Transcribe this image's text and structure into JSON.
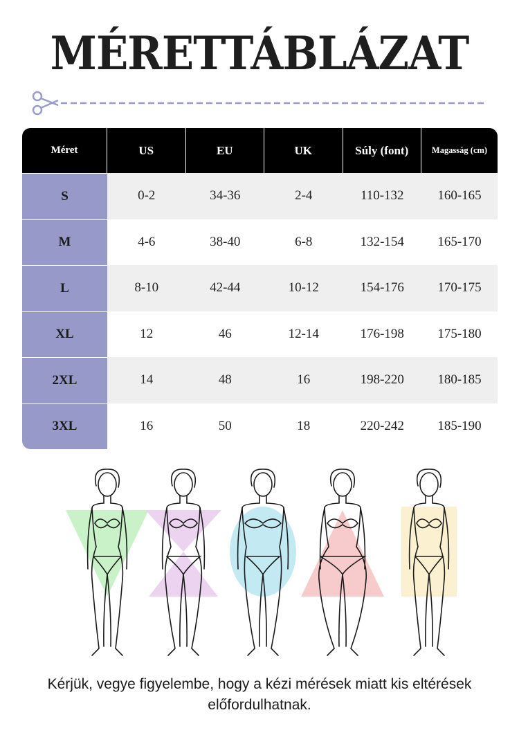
{
  "title": "MÉRETTÁBLÁZAT",
  "table": {
    "headers": [
      "Méret",
      "US",
      "EU",
      "UK",
      "Súly (font)",
      "Magasság (cm)"
    ],
    "rows": [
      [
        "S",
        "0-2",
        "34-36",
        "2-4",
        "110-132",
        "160-165"
      ],
      [
        "M",
        "4-6",
        "38-40",
        "6-8",
        "132-154",
        "165-170"
      ],
      [
        "L",
        "8-10",
        "42-44",
        "10-12",
        "154-176",
        "170-175"
      ],
      [
        "XL",
        "12",
        "46",
        "12-14",
        "176-198",
        "175-180"
      ],
      [
        "2XL",
        "14",
        "48",
        "16",
        "198-220",
        "180-185"
      ],
      [
        "3XL",
        "16",
        "50",
        "18",
        "220-242",
        "185-190"
      ]
    ]
  },
  "figures": [
    {
      "shape": "triangle-down",
      "color": "#c9f2c9"
    },
    {
      "shape": "hourglass",
      "color": "#ecd3f0"
    },
    {
      "shape": "oval",
      "color": "#c3e9f3"
    },
    {
      "shape": "triangle-up",
      "color": "#f7cbcb"
    },
    {
      "shape": "rectangle",
      "color": "#fbf0cf"
    }
  ],
  "note": "Kérjük, vegye figyelembe, hogy a kézi mérések miatt kis eltérések előfordulhatnak.",
  "colors": {
    "size_column": "#9799c9",
    "header": "#000000",
    "dashed_line": "#9a9ad0"
  }
}
